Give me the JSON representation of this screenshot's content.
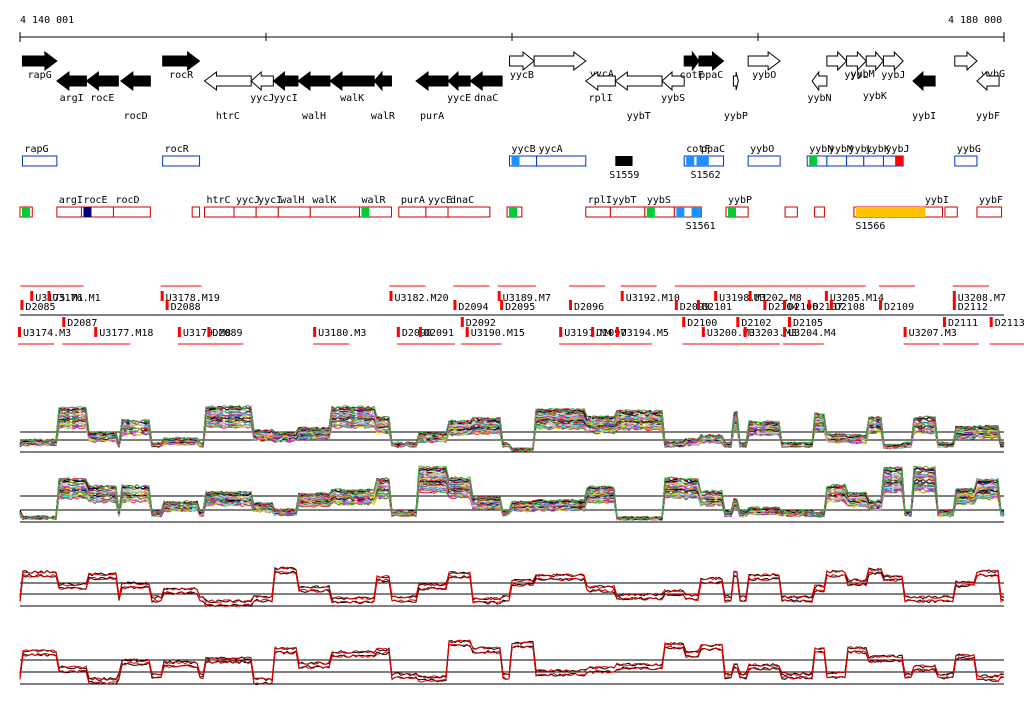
{
  "ruler": {
    "start_label": "4 140 001",
    "end_label": "4 180 000",
    "start": 4140001,
    "end": 4180000
  },
  "colors": {
    "strand_plus_fill": "#000000",
    "gene_outline": "#000000",
    "operon_blue": "#0033cc",
    "operon_red": "#cc0000",
    "green": "#00cc33",
    "cyan": "#1e90ff",
    "navy": "#000080",
    "orange": "#ffc000",
    "black_box": "#000000",
    "tile_red": "#ff0000",
    "tile_black": "#000000"
  },
  "genes": [
    {
      "name": "rapG",
      "strand": "+",
      "filled": true,
      "label_pos": "below",
      "start": 4140100,
      "end": 4141500,
      "lane": 0
    },
    {
      "name": "argI",
      "strand": "-",
      "filled": true,
      "label_pos": "below",
      "start": 4141500,
      "end": 4142700,
      "lane": 1
    },
    {
      "name": "rocE",
      "strand": "-",
      "filled": true,
      "label_pos": "below",
      "start": 4142700,
      "end": 4144000,
      "lane": 1
    },
    {
      "name": "rocD",
      "strand": "-",
      "filled": true,
      "label_pos": "below2",
      "start": 4144100,
      "end": 4145300,
      "lane": 1
    },
    {
      "name": "rocR",
      "strand": "+",
      "filled": true,
      "label_pos": "below",
      "start": 4145800,
      "end": 4147300,
      "lane": 0
    },
    {
      "name": "htrC",
      "strand": "-",
      "filled": false,
      "label_pos": "below2",
      "start": 4147500,
      "end": 4149400,
      "lane": 1
    },
    {
      "name": "yycJ",
      "strand": "-",
      "filled": false,
      "label_pos": "below",
      "start": 4149400,
      "end": 4150300,
      "lane": 1
    },
    {
      "name": "yycI",
      "strand": "-",
      "filled": true,
      "label_pos": "below",
      "start": 4150300,
      "end": 4151300,
      "lane": 1
    },
    {
      "name": "walH",
      "strand": "-",
      "filled": true,
      "label_pos": "below2",
      "start": 4151300,
      "end": 4152600,
      "lane": 1
    },
    {
      "name": "walK",
      "strand": "-",
      "filled": true,
      "label_pos": "below",
      "start": 4152600,
      "end": 4154400,
      "lane": 1
    },
    {
      "name": "walR",
      "strand": "-",
      "filled": true,
      "label_pos": "below2",
      "start": 4154400,
      "end": 4155100,
      "lane": 1
    },
    {
      "name": "purA",
      "strand": "-",
      "filled": true,
      "label_pos": "below2",
      "start": 4156100,
      "end": 4157400,
      "lane": 1
    },
    {
      "name": "yycE",
      "strand": "-",
      "filled": true,
      "label_pos": "below",
      "start": 4157400,
      "end": 4158300,
      "lane": 1
    },
    {
      "name": "dnaC",
      "strand": "-",
      "filled": true,
      "label_pos": "below",
      "start": 4158300,
      "end": 4159600,
      "lane": 1
    },
    {
      "name": "yycB",
      "strand": "+",
      "filled": false,
      "label_pos": "below",
      "start": 4159900,
      "end": 4160900,
      "lane": 0
    },
    {
      "name": "yycA",
      "strand": "+",
      "filled": false,
      "label_pos": "right",
      "start": 4160900,
      "end": 4163000,
      "lane": 0
    },
    {
      "name": "rplI",
      "strand": "-",
      "filled": false,
      "label_pos": "below",
      "start": 4163000,
      "end": 4164200,
      "lane": 1
    },
    {
      "name": "yybT",
      "strand": "-",
      "filled": false,
      "label_pos": "below2",
      "start": 4164200,
      "end": 4166100,
      "lane": 1
    },
    {
      "name": "yybS",
      "strand": "-",
      "filled": false,
      "label_pos": "below",
      "start": 4166100,
      "end": 4167000,
      "lane": 1
    },
    {
      "name": "cotF",
      "strand": "+",
      "filled": true,
      "label_pos": "below",
      "start": 4167000,
      "end": 4167600,
      "lane": 0
    },
    {
      "name": "ppaC",
      "strand": "+",
      "filled": true,
      "label_pos": "below",
      "start": 4167600,
      "end": 4168600,
      "lane": 0
    },
    {
      "name": "yybP",
      "strand": "+",
      "filled": false,
      "label_pos": "below2",
      "start": 4169000,
      "end": 4169200,
      "lane": 1
    },
    {
      "name": "yybO",
      "strand": "+",
      "filled": false,
      "label_pos": "below",
      "start": 4169600,
      "end": 4170900,
      "lane": 0
    },
    {
      "name": "yybN",
      "strand": "-",
      "filled": false,
      "label_pos": "below",
      "start": 4172200,
      "end": 4172800,
      "lane": 1
    },
    {
      "name": "yybM",
      "strand": "+",
      "filled": false,
      "label_pos": "right",
      "start": 4172800,
      "end": 4173600,
      "lane": 0
    },
    {
      "name": "yybL",
      "strand": "+",
      "filled": false,
      "label_pos": "below",
      "start": 4173600,
      "end": 4174400,
      "lane": 0
    },
    {
      "name": "yybK",
      "strand": "+",
      "filled": false,
      "label_pos": "below2",
      "start": 4174400,
      "end": 4175100,
      "lane": 0
    },
    {
      "name": "yybJ",
      "strand": "+",
      "filled": false,
      "label_pos": "below",
      "start": 4175100,
      "end": 4175900,
      "lane": 0
    },
    {
      "name": "yybI",
      "strand": "-",
      "filled": true,
      "label_pos": "below2",
      "start": 4176300,
      "end": 4177200,
      "lane": 1
    },
    {
      "name": "yybG",
      "strand": "+",
      "filled": false,
      "label_pos": "right",
      "start": 4178000,
      "end": 4178900,
      "lane": 0
    },
    {
      "name": "yybF",
      "strand": "-",
      "filled": false,
      "label_pos": "below2",
      "start": 4178900,
      "end": 4179800,
      "lane": 1
    }
  ],
  "operon_track_plus": [
    {
      "label": "rapG",
      "start": 4140100,
      "end": 4141500,
      "color": "operon_blue"
    },
    {
      "label": "rocR",
      "start": 4145800,
      "end": 4147300,
      "color": "operon_blue"
    },
    {
      "label": "yycB",
      "start": 4159900,
      "end": 4161000,
      "color": "operon_blue",
      "accent": "cyan"
    },
    {
      "label": "yycA",
      "start": 4161000,
      "end": 4163000,
      "color": "operon_blue"
    },
    {
      "label": "cotF",
      "start": 4167000,
      "end": 4167600,
      "color": "operon_blue",
      "accent": "cyan"
    },
    {
      "label": "ppaC",
      "start": 4167600,
      "end": 4168600,
      "color": "operon_blue"
    },
    {
      "label": "yybO",
      "start": 4169600,
      "end": 4170900,
      "color": "operon_blue"
    },
    {
      "label": "yybN",
      "start": 4172000,
      "end": 4172800,
      "color": "operon_blue",
      "accent": "green"
    },
    {
      "label": "yybM",
      "start": 4172800,
      "end": 4173600,
      "color": "operon_blue"
    },
    {
      "label": "yybL",
      "start": 4173600,
      "end": 4174300,
      "color": "operon_blue"
    },
    {
      "label": "yybK",
      "start": 4174300,
      "end": 4175100,
      "color": "operon_blue"
    },
    {
      "label": "yybJ",
      "start": 4175100,
      "end": 4175900,
      "color": "operon_blue",
      "accent": "tile_red"
    },
    {
      "label": "yybG",
      "start": 4178000,
      "end": 4178900,
      "color": "operon_blue"
    }
  ],
  "operon_track_minus": [
    {
      "label": "",
      "start": 4140001,
      "end": 4140500,
      "color": "operon_red",
      "accent": "green"
    },
    {
      "label": "argI",
      "start": 4141500,
      "end": 4142500,
      "color": "operon_red"
    },
    {
      "label": "rocE",
      "start": 4142500,
      "end": 4143800,
      "color": "operon_red",
      "accent": "navy"
    },
    {
      "label": "rocD",
      "start": 4143800,
      "end": 4145300,
      "color": "operon_red"
    },
    {
      "label": "",
      "start": 4147000,
      "end": 4147300,
      "color": "operon_red"
    },
    {
      "label": "htrC",
      "start": 4147500,
      "end": 4148700,
      "color": "operon_red"
    },
    {
      "label": "yycJ",
      "start": 4148700,
      "end": 4149600,
      "color": "operon_red"
    },
    {
      "label": "yycI",
      "start": 4149600,
      "end": 4150500,
      "color": "operon_red"
    },
    {
      "label": "walH",
      "start": 4150500,
      "end": 4151800,
      "color": "operon_red"
    },
    {
      "label": "walK",
      "start": 4151800,
      "end": 4153800,
      "color": "operon_red"
    },
    {
      "label": "walR",
      "start": 4153800,
      "end": 4155100,
      "color": "operon_red",
      "accent": "green"
    },
    {
      "label": "purA",
      "start": 4155400,
      "end": 4156500,
      "color": "operon_red"
    },
    {
      "label": "yycE",
      "start": 4156500,
      "end": 4157400,
      "color": "operon_red"
    },
    {
      "label": "dnaC",
      "start": 4157400,
      "end": 4159100,
      "color": "operon_red"
    },
    {
      "label": "",
      "start": 4159800,
      "end": 4160400,
      "color": "operon_red",
      "accent": "green"
    },
    {
      "label": "rplI",
      "start": 4163000,
      "end": 4164000,
      "color": "operon_red"
    },
    {
      "label": "yybT",
      "start": 4164000,
      "end": 4165400,
      "color": "operon_red"
    },
    {
      "label": "yybS",
      "start": 4165400,
      "end": 4166600,
      "color": "operon_red",
      "accent": "green"
    },
    {
      "label": "",
      "start": 4166600,
      "end": 4167700,
      "color": "operon_red",
      "accent": "cyan"
    },
    {
      "label": "yybP",
      "start": 4168700,
      "end": 4169600,
      "color": "operon_red",
      "accent": "green"
    },
    {
      "label": "",
      "start": 4171100,
      "end": 4171600,
      "color": "operon_red"
    },
    {
      "label": "",
      "start": 4172300,
      "end": 4172700,
      "color": "operon_red"
    },
    {
      "label": "",
      "start": 4173900,
      "end": 4176700,
      "color": "operon_red",
      "accent": "orange"
    },
    {
      "label": "yybI",
      "start": 4176700,
      "end": 4177500,
      "color": "operon_red"
    },
    {
      "label": "",
      "start": 4177600,
      "end": 4178100,
      "color": "operon_red"
    },
    {
      "label": "yybF",
      "start": 4178900,
      "end": 4179900,
      "color": "operon_red"
    }
  ],
  "special_regions": [
    {
      "label": "S1559",
      "start": 4164200,
      "end": 4164900,
      "color": "black_box",
      "track": "plus"
    },
    {
      "label": "S1562",
      "start": 4167500,
      "end": 4168000,
      "color": "cyan",
      "track": "plus"
    },
    {
      "label": "S1561",
      "start": 4167300,
      "end": 4167700,
      "color": "cyan",
      "track": "minus"
    },
    {
      "label": "S1566",
      "start": 4174200,
      "end": 4176800,
      "color": "orange",
      "track": "minus"
    }
  ],
  "tiling_labels_top": [
    {
      "text": "U3175.M1",
      "pos": 4140500
    },
    {
      "text": "U3176.M1",
      "pos": 4141200
    },
    {
      "text": "U3178.M19",
      "pos": 4145800
    },
    {
      "text": "U3182.M20",
      "pos": 4155100
    },
    {
      "text": "U3189.M7",
      "pos": 4159500
    },
    {
      "text": "U3192.M10",
      "pos": 4164500
    },
    {
      "text": "U3198.M1",
      "pos": 4168300
    },
    {
      "text": "U3202.M8",
      "pos": 4169700
    },
    {
      "text": "U3205.M14",
      "pos": 4172800
    },
    {
      "text": "U3208.M7",
      "pos": 4178000
    }
  ],
  "tiling_labels_mid": [
    {
      "text": "D2085",
      "pos": 4140100
    },
    {
      "text": "D2088",
      "pos": 4146000
    },
    {
      "text": "D2094",
      "pos": 4157700
    },
    {
      "text": "D2095",
      "pos": 4159600
    },
    {
      "text": "D2096",
      "pos": 4162400
    },
    {
      "text": "D2099",
      "pos": 4166700
    },
    {
      "text": "D2101",
      "pos": 4167600
    },
    {
      "text": "D2104",
      "pos": 4170300
    },
    {
      "text": "D2106",
      "pos": 4171100
    },
    {
      "text": "D2107",
      "pos": 4172100
    },
    {
      "text": "D2108",
      "pos": 4173000
    },
    {
      "text": "D2109",
      "pos": 4175000
    },
    {
      "text": "D2112",
      "pos": 4178000
    }
  ],
  "tiling_labels_low": [
    {
      "text": "D2087",
      "pos": 4141800
    },
    {
      "text": "D2092",
      "pos": 4158000
    },
    {
      "text": "D2100",
      "pos": 4167000
    },
    {
      "text": "D2102",
      "pos": 4169200
    },
    {
      "text": "D2105",
      "pos": 4171300
    },
    {
      "text": "D2111",
      "pos": 4177600
    },
    {
      "text": "D2113",
      "pos": 4179500
    }
  ],
  "tiling_labels_bottom": [
    {
      "text": "U3174.M3",
      "pos": 4140001
    },
    {
      "text": "U3177.M18",
      "pos": 4143100
    },
    {
      "text": "U3179.M8",
      "pos": 4146500
    },
    {
      "text": "D2089",
      "pos": 4147700
    },
    {
      "text": "U3180.M3",
      "pos": 4152000
    },
    {
      "text": "D2090",
      "pos": 4155400
    },
    {
      "text": "D2091",
      "pos": 4156300
    },
    {
      "text": "U3190.M15",
      "pos": 4158200
    },
    {
      "text": "U3191.M4",
      "pos": 4162000
    },
    {
      "text": "D2097",
      "pos": 4163300
    },
    {
      "text": "U3194.M5",
      "pos": 4164300
    },
    {
      "text": "U3200.M3",
      "pos": 4167800
    },
    {
      "text": "U3203.M3",
      "pos": 4169500
    },
    {
      "text": "U3204.M4",
      "pos": 4171100
    },
    {
      "text": "U3207.M3",
      "pos": 4176000
    }
  ],
  "expression_panels": [
    {
      "name": "condition-panel-1",
      "series_count": 40
    },
    {
      "name": "condition-panel-2",
      "series_count": 40
    },
    {
      "name": "strand-panel-plus",
      "series_count": 4
    },
    {
      "name": "strand-panel-minus",
      "series_count": 4
    }
  ]
}
